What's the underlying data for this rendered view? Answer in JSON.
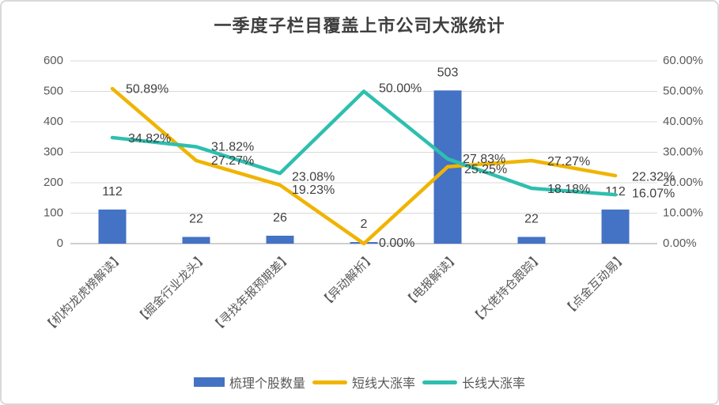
{
  "chart_data": {
    "type": "combo",
    "title": "一季度子栏目覆盖上市公司大涨统计",
    "categories": [
      "【机构龙虎榜解读】",
      "【掘金行业龙头】",
      "【寻找年报预期差】",
      "【异动解析】",
      "【电报解读】",
      "【大佬持仓跟踪】",
      "【点金互动易】"
    ],
    "series": [
      {
        "name": "梳理个股数量",
        "type": "bar",
        "axis": "left",
        "color": "#4472C4",
        "values": [
          112,
          22,
          26,
          2,
          503,
          22,
          112
        ],
        "labels": [
          "112",
          "22",
          "26",
          "2",
          "503",
          "22",
          "112"
        ]
      },
      {
        "name": "短线大涨率",
        "type": "line",
        "axis": "right",
        "color": "#F0B400",
        "values": [
          50.89,
          27.27,
          19.23,
          0,
          25.25,
          27.27,
          22.32
        ],
        "labels": [
          "50.89%",
          "27.27%",
          "19.23%",
          "0.00%",
          "25.25%",
          "27.27%",
          "22.32%"
        ]
      },
      {
        "name": "长线大涨率",
        "type": "line",
        "axis": "right",
        "color": "#2EBFAF",
        "values": [
          34.82,
          31.82,
          23.08,
          50,
          27.83,
          18.18,
          16.07
        ],
        "labels": [
          "34.82%",
          "31.82%",
          "23.08%",
          "50.00%",
          "27.83%",
          "18.18%",
          "16.07%"
        ]
      }
    ],
    "left_axis": {
      "min": 0,
      "max": 600,
      "step": 100,
      "ticks": [
        "0",
        "100",
        "200",
        "300",
        "400",
        "500",
        "600"
      ]
    },
    "right_axis": {
      "min": 0,
      "max": 60,
      "step": 10,
      "ticks": [
        "0.00%",
        "10.00%",
        "20.00%",
        "30.00%",
        "40.00%",
        "50.00%",
        "60.00%"
      ]
    },
    "layout": {
      "grid": true,
      "legend_position": "bottom",
      "line_label_offsets": [
        [
          [
            17,
            1
          ],
          [
            19,
            1
          ],
          [
            15,
            7
          ],
          [
            19,
            0
          ],
          [
            21,
            4
          ],
          [
            20,
            2
          ],
          [
            21,
            2
          ]
        ],
        [
          [
            20,
            2
          ],
          [
            19,
            1
          ],
          [
            15,
            5
          ],
          [
            19,
            -3
          ],
          [
            19,
            1
          ],
          [
            20,
            2
          ],
          [
            21,
            -1
          ]
        ]
      ]
    },
    "colors": {
      "grid": "#D9D9D9",
      "axis_line": "#BFBFBF",
      "data_label": "#404040",
      "axis_text": "#595959"
    }
  }
}
